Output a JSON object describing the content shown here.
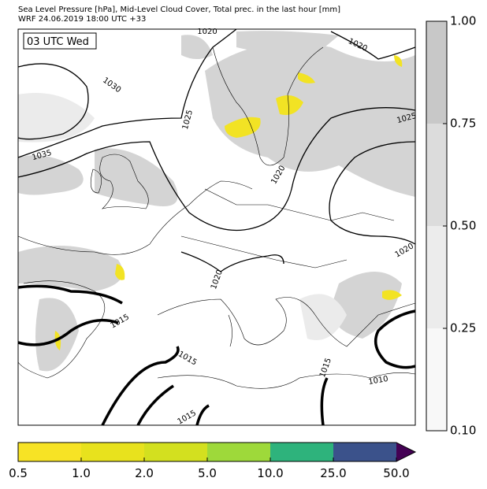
{
  "header": {
    "line1": "Sea Level Pressure [hPa], Mid-Level Cloud Cover, Total prec. in the last hour [mm]",
    "line2": "WRF 24.06.2019 18:00 UTC +33"
  },
  "time_label": "03 UTC Wed",
  "contour_labels": [
    "1020",
    "1020",
    "1030",
    "1025",
    "1035",
    "1025",
    "1020",
    "1020",
    "1020",
    "1015",
    "1015",
    "1015",
    "1015",
    "1010"
  ],
  "cloud_colorbar": {
    "colors": [
      "#f8f8f8",
      "#ececec",
      "#dcdcdc",
      "#c8c8c8"
    ],
    "ticks": [
      {
        "value": 0.1,
        "label": "0.10"
      },
      {
        "value": 0.25,
        "label": "0.25"
      },
      {
        "value": 0.5,
        "label": "0.50"
      },
      {
        "value": 0.75,
        "label": "0.75"
      },
      {
        "value": 1,
        "label": "1.00"
      }
    ]
  },
  "precip_colorbar": {
    "colors": [
      "#f7e325",
      "#e8e21d",
      "#d3e01f",
      "#9ed93a",
      "#2eb37c",
      "#3b528b",
      "#440154"
    ],
    "ticks": [
      0.5,
      {
        "value": 1,
        "label": "1.0"
      },
      {
        "value": 2,
        "label": "2.0"
      },
      {
        "value": 5,
        "label": "5.0"
      },
      {
        "value": 10,
        "label": "10.0"
      },
      {
        "value": 25,
        "label": "25.0"
      },
      {
        "value": 50,
        "label": "50.0"
      }
    ]
  }
}
